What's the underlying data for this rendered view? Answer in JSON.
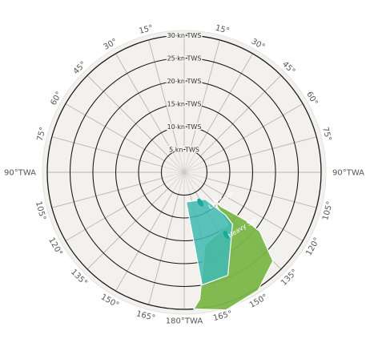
{
  "chart_data": {
    "type": "polar-area",
    "radial_axis": {
      "max": 30,
      "step": 5,
      "labels": [
        "5 kn TWS",
        "10 kn TWS",
        "15 kn TWS",
        "20 kn TWS",
        "25 kn TWS",
        "30 kn TWS"
      ]
    },
    "angular_axis": {
      "step_deg": 15,
      "left_labels": [
        {
          "angle": 15,
          "label": "15°"
        },
        {
          "angle": 30,
          "label": "30°"
        },
        {
          "angle": 45,
          "label": "45°"
        },
        {
          "angle": 60,
          "label": "60°"
        },
        {
          "angle": 75,
          "label": "75°"
        },
        {
          "angle": 90,
          "label": "90°TWA"
        },
        {
          "angle": 105,
          "label": "105°"
        },
        {
          "angle": 120,
          "label": "120°"
        },
        {
          "angle": 135,
          "label": "135°"
        },
        {
          "angle": 150,
          "label": "150°"
        },
        {
          "angle": 165,
          "label": "165°"
        }
      ],
      "right_labels": [
        {
          "angle": 15,
          "label": "15°"
        },
        {
          "angle": 30,
          "label": "30°"
        },
        {
          "angle": 45,
          "label": "45°"
        },
        {
          "angle": 60,
          "label": "60°"
        },
        {
          "angle": 75,
          "label": "75°"
        },
        {
          "angle": 90,
          "label": "90°TWA"
        },
        {
          "angle": 105,
          "label": "105°"
        },
        {
          "angle": 120,
          "label": "120°"
        },
        {
          "angle": 135,
          "label": "135°"
        },
        {
          "angle": 150,
          "label": "150°"
        },
        {
          "angle": 165,
          "label": "165°"
        }
      ],
      "bottom_label": {
        "angle": 180,
        "label": "180°TWA"
      }
    },
    "zones": [
      {
        "name": "Heavy Spi",
        "color": "#7ab648",
        "label_at": {
          "twa": 134,
          "tws": 18
        },
        "points": [
          [
            133,
            8.5
          ],
          [
            140,
            15
          ],
          [
            164,
            16.5
          ],
          [
            173,
            28
          ],
          [
            176,
            30
          ],
          [
            163,
            31.5
          ],
          [
            148,
            30.5
          ],
          [
            135,
            27.5
          ],
          [
            128,
            21
          ],
          [
            128,
            17
          ],
          [
            133,
            11
          ],
          [
            133,
            8.5
          ]
        ]
      },
      {
        "name": "Light Spi",
        "color": "#3fbab2",
        "label_at": {
          "twa": 128,
          "tws": 10.5
        },
        "points": [
          [
            142,
            7.5
          ],
          [
            176,
            6.5
          ],
          [
            171,
            25
          ],
          [
            157,
            24.5
          ],
          [
            137,
            15.5
          ],
          [
            136,
            13
          ],
          [
            142,
            7.5
          ]
        ]
      }
    ],
    "markers": [
      {
        "color": "#1aa89d",
        "twa": 152,
        "tws": 7.5
      },
      {
        "color": "#1aa89d",
        "twa": 146,
        "tws": 16.5
      }
    ]
  }
}
